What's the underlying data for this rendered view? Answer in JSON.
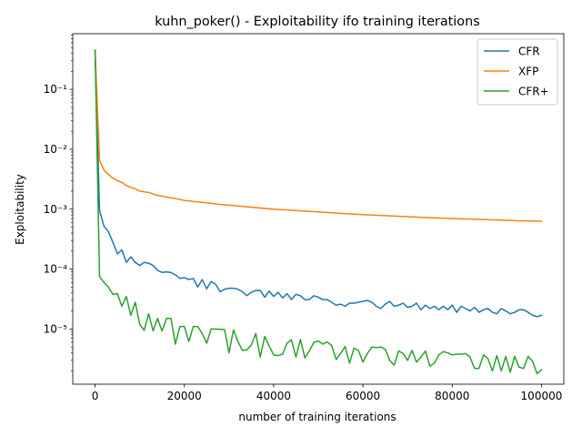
{
  "chart_data": {
    "type": "line",
    "title": "kuhn_poker() - Exploitability ifo training iterations",
    "xlabel": "number of training iterations",
    "ylabel": "Exploitability",
    "xlim": [
      -5000,
      105000
    ],
    "ylim": [
      1.2e-06,
      0.85
    ],
    "yscale": "log",
    "grid": false,
    "legend_position": "top-right",
    "x_ticks": [
      0,
      20000,
      40000,
      60000,
      80000,
      100000
    ],
    "x_tick_labels": [
      "0",
      "20000",
      "40000",
      "60000",
      "80000",
      "100000"
    ],
    "y_ticks": [
      1e-05,
      0.0001,
      0.001,
      0.01,
      0.1
    ],
    "y_tick_labels": [
      "10⁻⁵",
      "10⁻⁴",
      "10⁻³",
      "10⁻²",
      "10⁻¹"
    ],
    "series": [
      {
        "name": "CFR",
        "color": "#1f77b4",
        "x": [
          0,
          1000,
          2000,
          3000,
          4000,
          5000,
          6000,
          7000,
          8000,
          9000,
          10000,
          11000,
          12000,
          13000,
          14000,
          15000,
          16000,
          17000,
          18000,
          19000,
          20000,
          21000,
          22000,
          23000,
          24000,
          25000,
          26000,
          27000,
          28000,
          29000,
          30000,
          31000,
          32000,
          33000,
          34000,
          35000,
          36000,
          37000,
          38000,
          39000,
          40000,
          41000,
          42000,
          43000,
          44000,
          45000,
          46000,
          47000,
          48000,
          49000,
          50000,
          51000,
          52000,
          53000,
          54000,
          55000,
          56000,
          57000,
          58000,
          59000,
          60000,
          61000,
          62000,
          63000,
          64000,
          65000,
          66000,
          67000,
          68000,
          69000,
          70000,
          71000,
          72000,
          73000,
          74000,
          75000,
          76000,
          77000,
          78000,
          79000,
          80000,
          81000,
          82000,
          83000,
          84000,
          85000,
          86000,
          87000,
          88000,
          89000,
          90000,
          91000,
          92000,
          93000,
          94000,
          95000,
          96000,
          97000,
          98000,
          99000,
          100000
        ],
        "values": [
          0.45,
          0.00095,
          0.00052,
          0.00042,
          0.00028,
          0.00018,
          0.00021,
          0.00013,
          0.00016,
          0.00013,
          0.000115,
          0.00013,
          0.000125,
          0.000115,
          9.5e-05,
          8.8e-05,
          9e-05,
          8.8e-05,
          8e-05,
          7e-05,
          7.2e-05,
          6.7e-05,
          7e-05,
          5e-05,
          6.7e-05,
          4.7e-05,
          6.2e-05,
          5.6e-05,
          4.2e-05,
          4.6e-05,
          4.8e-05,
          4.8e-05,
          4.6e-05,
          4.2e-05,
          3.6e-05,
          4.1e-05,
          4.4e-05,
          4.4e-05,
          3.4e-05,
          4.3e-05,
          3.5e-05,
          4.1e-05,
          3.3e-05,
          3.9e-05,
          3.1e-05,
          3.8e-05,
          3.6e-05,
          3.1e-05,
          3.1e-05,
          3.6e-05,
          3.4e-05,
          3.1e-05,
          3.1e-05,
          2.8e-05,
          2.5e-05,
          2.6e-05,
          2.4e-05,
          2.7e-05,
          2.7e-05,
          2.8e-05,
          2.9e-05,
          3e-05,
          2.8e-05,
          2.4e-05,
          2.2e-05,
          2.6e-05,
          2.9e-05,
          2.4e-05,
          2.5e-05,
          2.7e-05,
          2.3e-05,
          2.4e-05,
          2.7e-05,
          2.1e-05,
          2.5e-05,
          2.2e-05,
          2.4e-05,
          2.1e-05,
          2.4e-05,
          2.1e-05,
          2.5e-05,
          1.9e-05,
          2.4e-05,
          2.2e-05,
          2e-05,
          2.3e-05,
          1.9e-05,
          2.1e-05,
          2.2e-05,
          1.9e-05,
          1.8e-05,
          2.2e-05,
          2e-05,
          1.8e-05,
          1.9e-05,
          2.1e-05,
          2.1e-05,
          1.9e-05,
          1.7e-05,
          1.6e-05,
          1.7e-05
        ]
      },
      {
        "name": "XFP",
        "color": "#ff7f0e",
        "x": [
          0,
          1000,
          2000,
          3000,
          4000,
          5000,
          6000,
          7000,
          8000,
          9000,
          10000,
          12000,
          14000,
          16000,
          18000,
          20000,
          22000,
          24000,
          26000,
          28000,
          30000,
          35000,
          40000,
          45000,
          50000,
          55000,
          60000,
          65000,
          70000,
          75000,
          80000,
          85000,
          90000,
          95000,
          100000
        ],
        "values": [
          0.45,
          0.0065,
          0.0045,
          0.0038,
          0.0033,
          0.003,
          0.0028,
          0.0025,
          0.0023,
          0.0022,
          0.002,
          0.0019,
          0.0017,
          0.0016,
          0.0015,
          0.0014,
          0.00135,
          0.0013,
          0.00125,
          0.0012,
          0.00117,
          0.00108,
          0.001,
          0.00095,
          0.0009,
          0.00085,
          0.00081,
          0.00078,
          0.00075,
          0.00072,
          0.0007,
          0.00068,
          0.00066,
          0.00064,
          0.00063
        ]
      },
      {
        "name": "CFR+",
        "color": "#2ca02c",
        "x": [
          0,
          1000,
          2000,
          3000,
          4000,
          5000,
          6000,
          7000,
          8000,
          9000,
          10000,
          11000,
          12000,
          13000,
          14000,
          15000,
          16000,
          17000,
          18000,
          19000,
          20000,
          21000,
          22000,
          23000,
          24000,
          25000,
          26000,
          27000,
          28000,
          29000,
          30000,
          31000,
          32000,
          33000,
          34000,
          35000,
          36000,
          37000,
          38000,
          39000,
          40000,
          41000,
          42000,
          43000,
          44000,
          45000,
          46000,
          47000,
          48000,
          49000,
          50000,
          51000,
          52000,
          53000,
          54000,
          55000,
          56000,
          57000,
          58000,
          59000,
          60000,
          61000,
          62000,
          63000,
          64000,
          65000,
          66000,
          67000,
          68000,
          69000,
          70000,
          71000,
          72000,
          73000,
          74000,
          75000,
          76000,
          77000,
          78000,
          79000,
          80000,
          81000,
          82000,
          83000,
          84000,
          85000,
          86000,
          87000,
          88000,
          89000,
          90000,
          91000,
          92000,
          93000,
          94000,
          95000,
          96000,
          97000,
          98000,
          99000,
          100000
        ],
        "values": [
          0.45,
          7.5e-05,
          6e-05,
          5e-05,
          3.8e-05,
          3.9e-05,
          2.4e-05,
          3.5e-05,
          1.7e-05,
          2.8e-05,
          1.2e-05,
          9.5e-06,
          1.8e-05,
          9.3e-06,
          1.5e-05,
          9.3e-06,
          1.5e-05,
          1.5e-05,
          5.6e-06,
          1.1e-05,
          1.1e-05,
          6.2e-06,
          1.1e-05,
          1.1e-05,
          8.4e-06,
          5.8e-06,
          1e-05,
          1e-05,
          9.9e-06,
          9.8e-06,
          4e-06,
          9.7e-06,
          6.2e-06,
          4.4e-06,
          4.5e-06,
          5.4e-06,
          8.4e-06,
          3.4e-06,
          7.5e-06,
          5.2e-06,
          3.7e-06,
          3.6e-06,
          3.8e-06,
          5.8e-06,
          6.6e-06,
          3.4e-06,
          6.7e-06,
          3.3e-06,
          4.3e-06,
          6e-06,
          6.3e-06,
          5.6e-06,
          6.1e-06,
          5.3e-06,
          3.1e-06,
          3.9e-06,
          5.1e-06,
          2.7e-06,
          4.8e-06,
          4.4e-06,
          2.8e-06,
          3.9e-06,
          5e-06,
          4.9e-06,
          5e-06,
          4.6e-06,
          3e-06,
          2.5e-06,
          4.3e-06,
          3.9e-06,
          3e-06,
          4.4e-06,
          2.8e-06,
          3.4e-06,
          4.3e-06,
          2.4e-06,
          2.7e-06,
          3.7e-06,
          4.2e-06,
          4e-06,
          3.7e-06,
          3.8e-06,
          3.8e-06,
          3.9e-06,
          3.4e-06,
          2.2e-06,
          2.2e-06,
          3.7e-06,
          3.2e-06,
          2e-06,
          3.6e-06,
          2e-06,
          3.5e-06,
          1.9e-06,
          3.5e-06,
          2.3e-06,
          2.2e-06,
          3.5e-06,
          2.9e-06,
          1.8e-06,
          2.1e-06
        ]
      }
    ]
  }
}
